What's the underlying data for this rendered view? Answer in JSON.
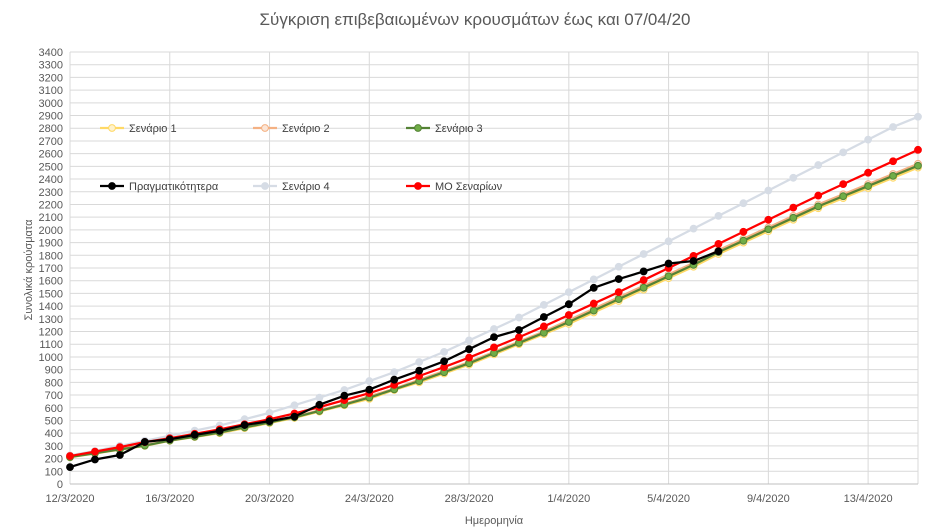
{
  "chart_data": {
    "type": "line",
    "title": "Σύγκριση επιβεβαιωμένων κρουσμάτων έως και 07/04/20",
    "xlabel": "Ημερομηνία",
    "ylabel": "Συνολικά κρούσματα",
    "ylim": [
      0,
      3400
    ],
    "ytick_step": 100,
    "grid": true,
    "x": [
      "12/3/2020",
      "13/3/2020",
      "14/3/2020",
      "15/3/2020",
      "16/3/2020",
      "17/3/2020",
      "18/3/2020",
      "19/3/2020",
      "20/3/2020",
      "21/3/2020",
      "22/3/2020",
      "23/3/2020",
      "24/3/2020",
      "25/3/2020",
      "26/3/2020",
      "27/3/2020",
      "28/3/2020",
      "29/3/2020",
      "30/3/2020",
      "31/3/2020",
      "1/4/2020",
      "2/4/2020",
      "3/4/2020",
      "4/4/2020",
      "5/4/2020",
      "6/4/2020",
      "7/4/2020",
      "8/4/2020",
      "9/4/2020",
      "10/4/2020",
      "11/4/2020",
      "12/4/2020",
      "13/4/2020",
      "14/4/2020",
      "15/4/2020"
    ],
    "x_tick_labels": [
      "12/3/2020",
      "16/3/2020",
      "20/3/2020",
      "24/3/2020",
      "28/3/2020",
      "1/4/2020",
      "5/4/2020",
      "9/4/2020",
      "13/4/2020"
    ],
    "legend": {
      "placement": "inside-top-left",
      "entries": [
        "Σενάριο 1",
        "Σενάριο 2",
        "Σενάριο 3",
        "Πραγματικότητερα",
        "Σενάριο 4",
        "ΜΟ Σεναρίων"
      ]
    },
    "series": [
      {
        "name": "Σενάριο 1",
        "color": "#ffd966",
        "marker": "#fff2cc",
        "values": [
          210,
          240,
          270,
          300,
          340,
          370,
          400,
          440,
          480,
          520,
          570,
          620,
          670,
          740,
          800,
          870,
          940,
          1020,
          1100,
          1180,
          1260,
          1350,
          1440,
          1530,
          1620,
          1710,
          1810,
          1900,
          1990,
          2080,
          2170,
          2250,
          2330,
          2410,
          2490
        ]
      },
      {
        "name": "Σενάριο 2",
        "color": "#f4b183",
        "marker": "#fbe5d6",
        "values": [
          215,
          245,
          275,
          305,
          345,
          375,
          410,
          450,
          490,
          530,
          580,
          630,
          690,
          750,
          820,
          890,
          960,
          1040,
          1120,
          1200,
          1290,
          1380,
          1470,
          1560,
          1650,
          1740,
          1840,
          1930,
          2020,
          2110,
          2200,
          2280,
          2360,
          2440,
          2520
        ]
      },
      {
        "name": "Σενάριο 3",
        "color": "#548235",
        "marker": "#70ad47",
        "values": [
          212,
          242,
          272,
          302,
          342,
          372,
          405,
          445,
          485,
          525,
          575,
          625,
          680,
          745,
          810,
          880,
          950,
          1030,
          1110,
          1190,
          1275,
          1365,
          1455,
          1545,
          1635,
          1725,
          1825,
          1915,
          2005,
          2095,
          2185,
          2265,
          2345,
          2425,
          2505
        ]
      },
      {
        "name": "Πραγματικότητερα",
        "color": "#000000",
        "marker": "#000000",
        "values": [
          133,
          193,
          228,
          331,
          352,
          387,
          418,
          464,
          495,
          530,
          624,
          695,
          743,
          821,
          892,
          966,
          1061,
          1156,
          1212,
          1314,
          1415,
          1544,
          1613,
          1673,
          1735,
          1755,
          1832,
          null,
          null,
          null,
          null,
          null,
          null,
          null,
          null
        ]
      },
      {
        "name": "Σενάριο 4",
        "color": "#d6dce5",
        "marker": "#d6dce5",
        "values": [
          225,
          260,
          300,
          340,
          380,
          420,
          460,
          510,
          560,
          620,
          680,
          740,
          810,
          880,
          960,
          1040,
          1130,
          1220,
          1310,
          1410,
          1510,
          1610,
          1710,
          1810,
          1910,
          2010,
          2110,
          2210,
          2310,
          2410,
          2510,
          2610,
          2710,
          2810,
          2890
        ]
      },
      {
        "name": "ΜΟ Σεναρίων",
        "color": "#ff0000",
        "marker": "#ff0000",
        "values": [
          220,
          255,
          290,
          330,
          360,
          395,
          430,
          470,
          510,
          555,
          605,
          660,
          715,
          780,
          850,
          920,
          995,
          1075,
          1155,
          1240,
          1330,
          1420,
          1510,
          1605,
          1700,
          1795,
          1890,
          1985,
          2080,
          2175,
          2270,
          2360,
          2450,
          2540,
          2630
        ]
      }
    ]
  }
}
